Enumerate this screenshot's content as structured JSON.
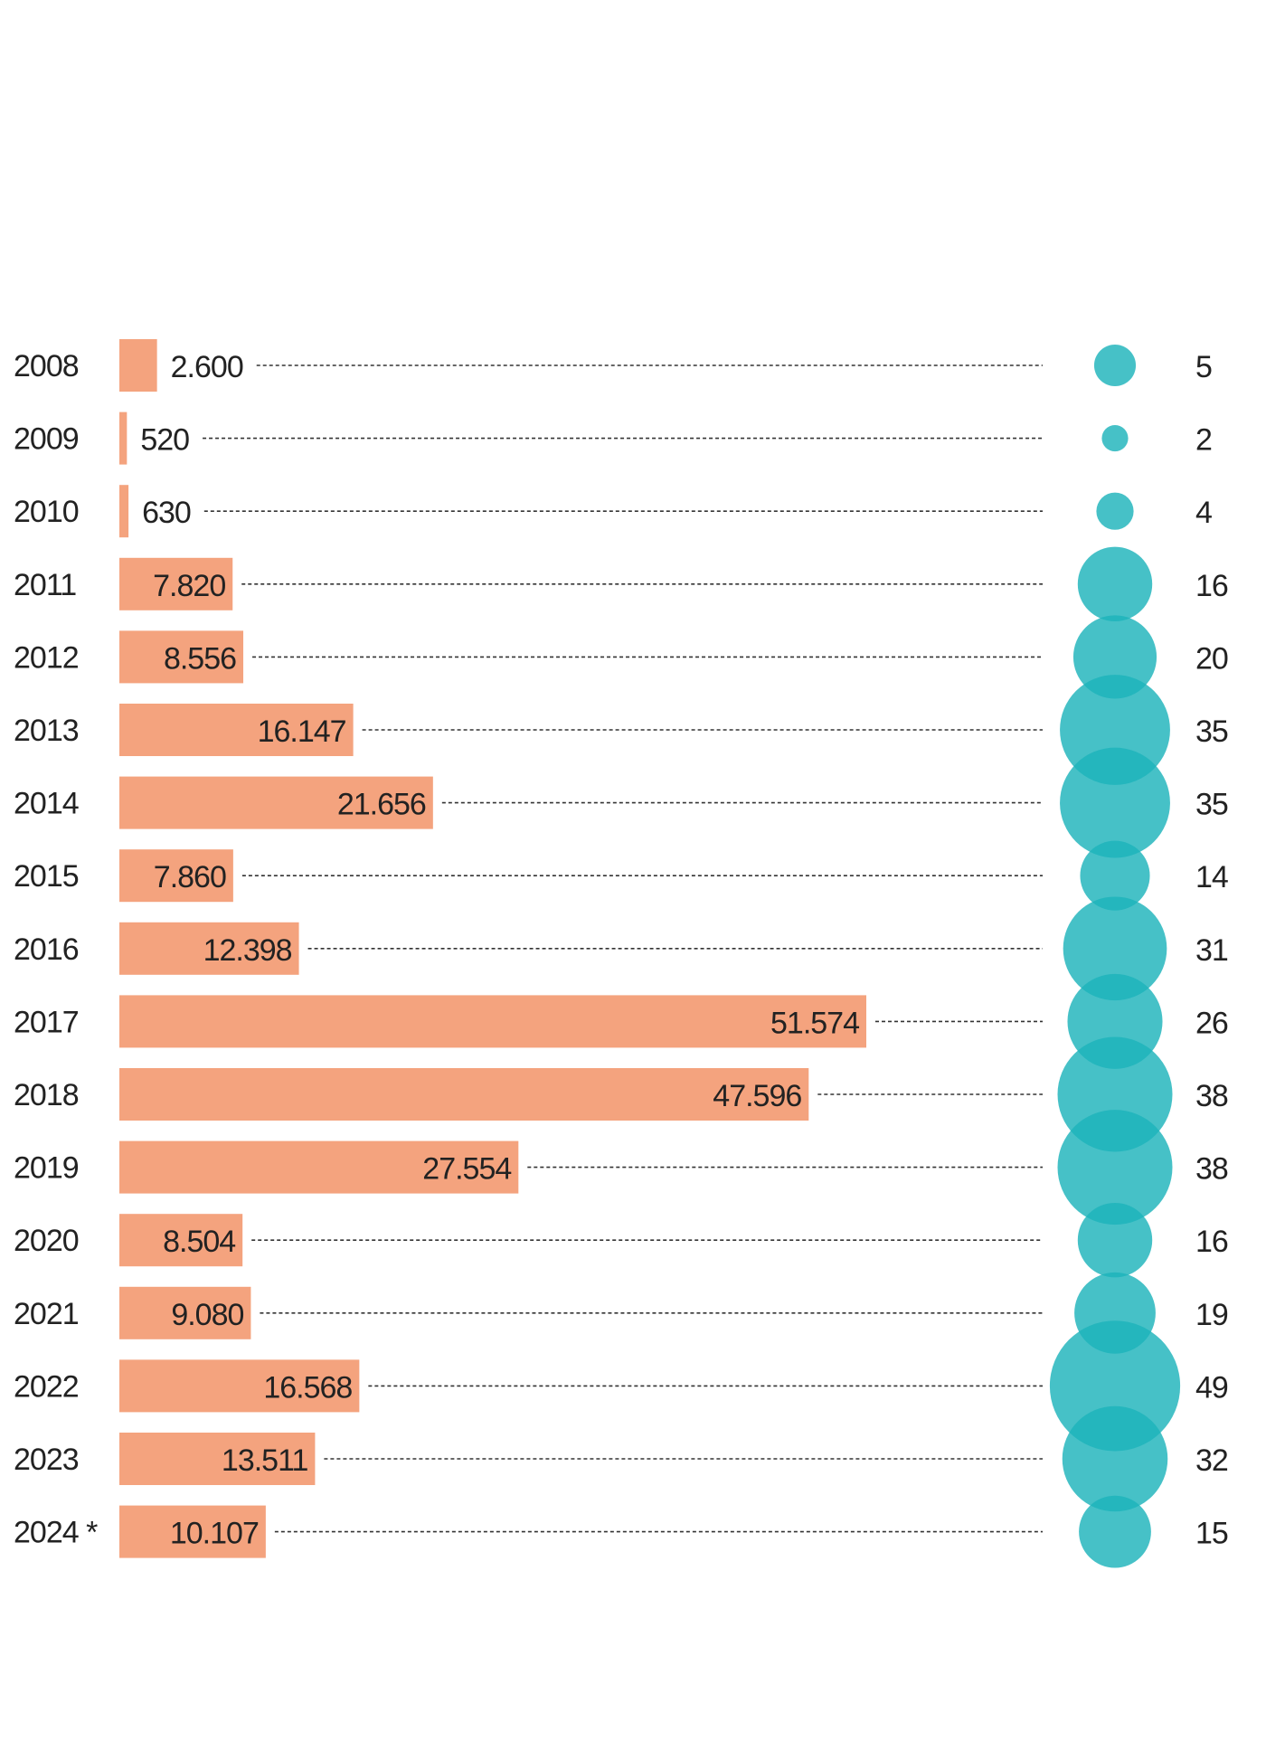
{
  "chart_data": {
    "type": "bar",
    "title": "",
    "xlabel": "",
    "ylabel": "",
    "categories": [
      "2008",
      "2009",
      "2010",
      "2011",
      "2012",
      "2013",
      "2014",
      "2015",
      "2016",
      "2017",
      "2018",
      "2019",
      "2020",
      "2021",
      "2022",
      "2023",
      "2024 *"
    ],
    "series": [
      {
        "name": "bars",
        "values": [
          2600,
          520,
          630,
          7820,
          8556,
          16147,
          21656,
          7860,
          12398,
          51574,
          47596,
          27554,
          8504,
          9080,
          16568,
          13511,
          10107
        ],
        "labels": [
          "2.600",
          "520",
          "630",
          "7.820",
          "8.556",
          "16.147",
          "21.656",
          "7.860",
          "12.398",
          "51.574",
          "47.596",
          "27.554",
          "8.504",
          "9.080",
          "16.568",
          "13.511",
          "10.107"
        ],
        "color": "#f4a37e"
      },
      {
        "name": "bubbles",
        "values": [
          5,
          2,
          4,
          16,
          20,
          35,
          35,
          14,
          31,
          26,
          38,
          38,
          16,
          19,
          49,
          32,
          15
        ],
        "labels": [
          "5",
          "2",
          "4",
          "16",
          "20",
          "35",
          "35",
          "14",
          "31",
          "26",
          "38",
          "38",
          "16",
          "19",
          "49",
          "32",
          "15"
        ],
        "color": "#1db3bb"
      }
    ],
    "grid": false,
    "legend": "none"
  }
}
